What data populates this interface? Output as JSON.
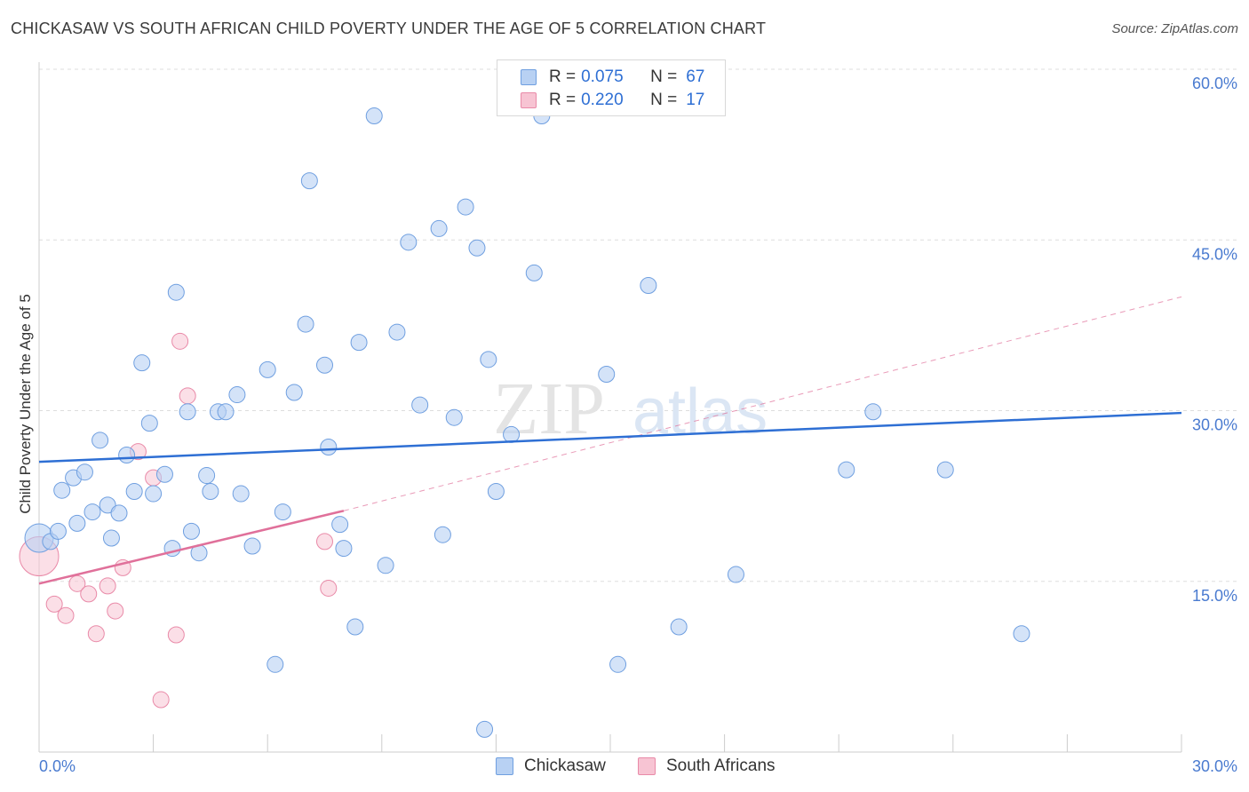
{
  "title": "CHICKASAW VS SOUTH AFRICAN CHILD POVERTY UNDER THE AGE OF 5 CORRELATION CHART",
  "source": "Source: ZipAtlas.com",
  "legend": {
    "rows": [
      {
        "r_label": "R =",
        "r_value": "0.075",
        "n_label": "N =",
        "n_value": "67"
      },
      {
        "r_label": "R =",
        "r_value": "0.220",
        "n_label": "N =",
        "n_value": "17"
      }
    ]
  },
  "bottom_legend": [
    "Chickasaw",
    "South Africans"
  ],
  "watermark": "ZIPatlas",
  "colors": {
    "chickasaw_fill": "#b8d1f3",
    "chickasaw_stroke": "#6f9fe0",
    "chickasaw_line": "#2e6fd4",
    "south_african_fill": "#f7c4d3",
    "south_african_stroke": "#e98aa8",
    "south_african_line": "#e0709a",
    "tick_label": "#4a7bd0",
    "grid": "#dddddd"
  },
  "chart_data": {
    "type": "scatter",
    "ylabel": "Child Poverty Under the Age of 5",
    "x_tick_labels": [
      "0.0%",
      "30.0%"
    ],
    "y_tick_labels": [
      "15.0%",
      "30.0%",
      "45.0%",
      "60.0%"
    ],
    "xlim": [
      0,
      30
    ],
    "ylim": [
      0,
      60
    ],
    "grid": true,
    "legend_position": "top-center",
    "series": [
      {
        "name": "Chickasaw",
        "R": 0.075,
        "N": 67,
        "trend": {
          "x": [
            0,
            30
          ],
          "y": [
            25.5,
            29.8
          ]
        },
        "points": [
          [
            0.0,
            18.8
          ],
          [
            0.3,
            18.5
          ],
          [
            0.5,
            19.4
          ],
          [
            0.6,
            23.0
          ],
          [
            0.9,
            24.1
          ],
          [
            1.0,
            20.1
          ],
          [
            1.2,
            24.6
          ],
          [
            1.4,
            21.1
          ],
          [
            1.6,
            27.4
          ],
          [
            1.8,
            21.7
          ],
          [
            1.9,
            18.8
          ],
          [
            2.1,
            21.0
          ],
          [
            2.3,
            26.1
          ],
          [
            2.5,
            22.9
          ],
          [
            2.7,
            34.2
          ],
          [
            2.9,
            28.9
          ],
          [
            3.0,
            22.7
          ],
          [
            3.3,
            24.4
          ],
          [
            3.5,
            17.9
          ],
          [
            3.6,
            40.4
          ],
          [
            3.9,
            29.9
          ],
          [
            4.0,
            19.4
          ],
          [
            4.2,
            17.5
          ],
          [
            4.4,
            24.3
          ],
          [
            4.5,
            22.9
          ],
          [
            4.7,
            29.9
          ],
          [
            4.9,
            29.9
          ],
          [
            5.2,
            31.4
          ],
          [
            5.3,
            22.7
          ],
          [
            5.6,
            18.1
          ],
          [
            6.0,
            33.6
          ],
          [
            6.2,
            7.7
          ],
          [
            6.4,
            21.1
          ],
          [
            6.7,
            31.6
          ],
          [
            7.0,
            37.6
          ],
          [
            7.1,
            50.2
          ],
          [
            7.5,
            34.0
          ],
          [
            7.6,
            26.8
          ],
          [
            7.9,
            20.0
          ],
          [
            8.0,
            17.9
          ],
          [
            8.3,
            11.0
          ],
          [
            8.4,
            36.0
          ],
          [
            8.8,
            55.9
          ],
          [
            9.1,
            16.4
          ],
          [
            9.4,
            36.9
          ],
          [
            9.7,
            44.8
          ],
          [
            10.0,
            30.5
          ],
          [
            10.5,
            46.0
          ],
          [
            10.6,
            19.1
          ],
          [
            10.9,
            29.4
          ],
          [
            11.2,
            47.9
          ],
          [
            11.5,
            44.3
          ],
          [
            11.7,
            2.0
          ],
          [
            11.8,
            34.5
          ],
          [
            12.0,
            22.9
          ],
          [
            12.4,
            27.9
          ],
          [
            13.0,
            42.1
          ],
          [
            13.2,
            55.9
          ],
          [
            14.9,
            33.2
          ],
          [
            15.2,
            7.7
          ],
          [
            16.0,
            41.0
          ],
          [
            16.8,
            11.0
          ],
          [
            18.3,
            15.6
          ],
          [
            21.2,
            24.8
          ],
          [
            21.9,
            29.9
          ],
          [
            23.8,
            24.8
          ],
          [
            25.8,
            10.4
          ]
        ]
      },
      {
        "name": "South Africans",
        "R": 0.22,
        "N": 17,
        "trend": {
          "x": [
            0,
            8
          ],
          "y": [
            14.8,
            21.2
          ]
        },
        "trend_dashed": {
          "x": [
            8,
            30
          ],
          "y": [
            21.2,
            40.0
          ]
        },
        "points": [
          [
            0.0,
            17.2
          ],
          [
            0.4,
            13.0
          ],
          [
            0.7,
            12.0
          ],
          [
            1.0,
            14.8
          ],
          [
            1.3,
            13.9
          ],
          [
            1.5,
            10.4
          ],
          [
            1.8,
            14.6
          ],
          [
            2.0,
            12.4
          ],
          [
            2.2,
            16.2
          ],
          [
            2.6,
            26.4
          ],
          [
            3.0,
            24.1
          ],
          [
            3.2,
            4.6
          ],
          [
            3.6,
            10.3
          ],
          [
            3.7,
            36.1
          ],
          [
            3.9,
            31.3
          ],
          [
            7.5,
            18.5
          ],
          [
            7.6,
            14.4
          ]
        ]
      }
    ]
  }
}
